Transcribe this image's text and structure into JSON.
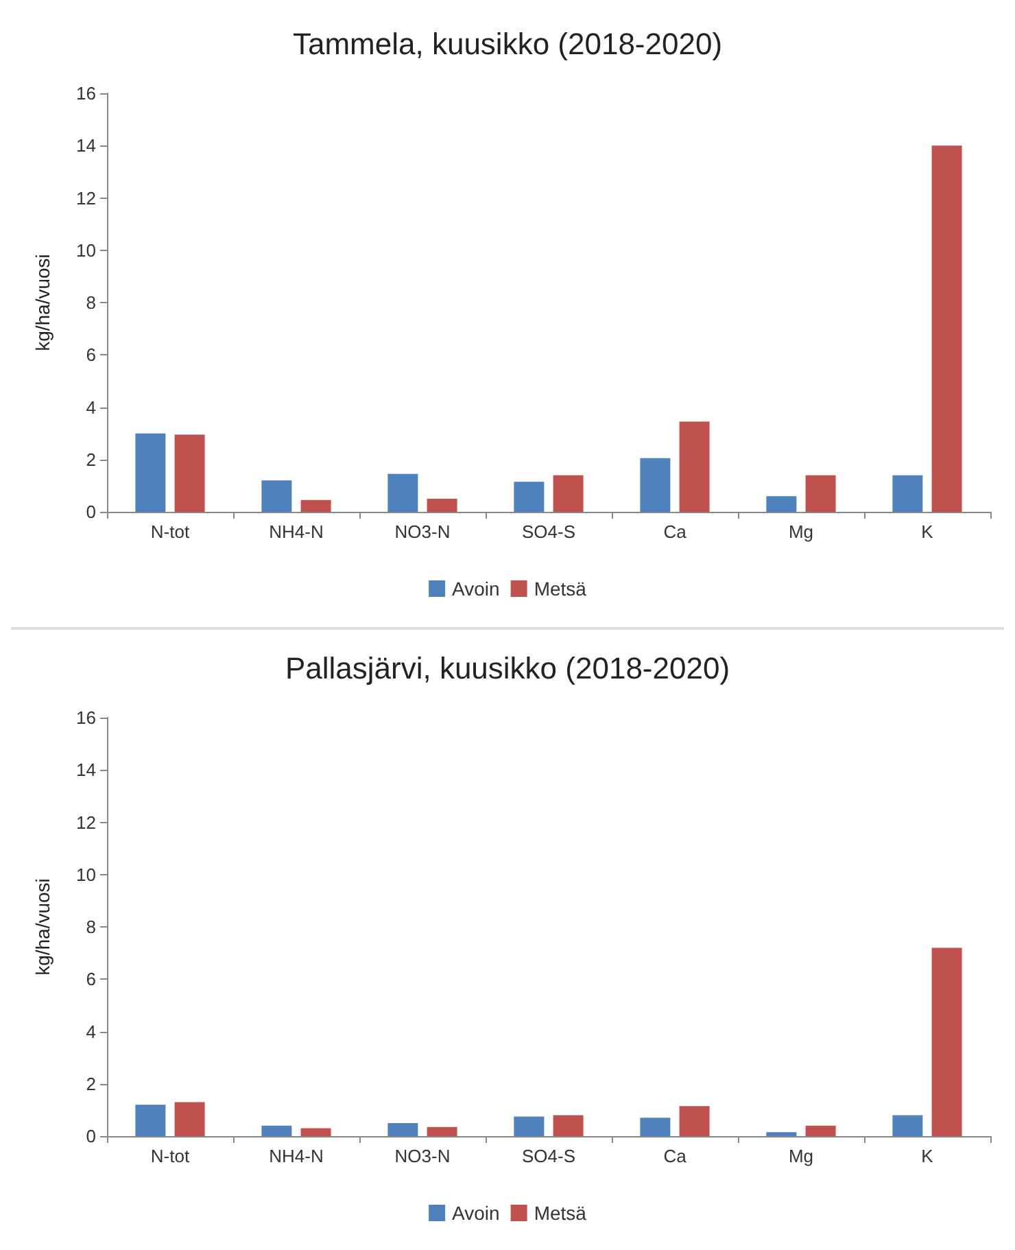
{
  "chart_data": [
    {
      "type": "bar",
      "title": "Tammela, kuusikko (2018-2020)",
      "ylabel": "kg/ha/vuosi",
      "categories": [
        "N-tot",
        "NH4-N",
        "NO3-N",
        "SO4-S",
        "Ca",
        "Mg",
        "K"
      ],
      "series": [
        {
          "name": "Avoin",
          "color": "#4f81bd",
          "values": [
            3.0,
            1.2,
            1.45,
            1.15,
            2.05,
            0.6,
            1.4
          ]
        },
        {
          "name": "Metsä",
          "color": "#c0504d",
          "values": [
            2.95,
            0.45,
            0.5,
            1.4,
            3.45,
            1.4,
            14.0
          ]
        }
      ],
      "ylim": [
        0,
        16
      ],
      "yticks": [
        0,
        2,
        4,
        6,
        8,
        10,
        12,
        14,
        16
      ],
      "grid": false,
      "legend": "bottom"
    },
    {
      "type": "bar",
      "title": "Pallasjärvi, kuusikko (2018-2020)",
      "ylabel": "kg/ha/vuosi",
      "categories": [
        "N-tot",
        "NH4-N",
        "NO3-N",
        "SO4-S",
        "Ca",
        "Mg",
        "K"
      ],
      "series": [
        {
          "name": "Avoin",
          "color": "#4f81bd",
          "values": [
            1.2,
            0.4,
            0.5,
            0.75,
            0.7,
            0.15,
            0.8
          ]
        },
        {
          "name": "Metsä",
          "color": "#c0504d",
          "values": [
            1.3,
            0.3,
            0.35,
            0.8,
            1.15,
            0.4,
            7.2
          ]
        }
      ],
      "ylim": [
        0,
        16
      ],
      "yticks": [
        0,
        2,
        4,
        6,
        8,
        10,
        12,
        14,
        16
      ],
      "grid": false,
      "legend": "bottom"
    }
  ]
}
